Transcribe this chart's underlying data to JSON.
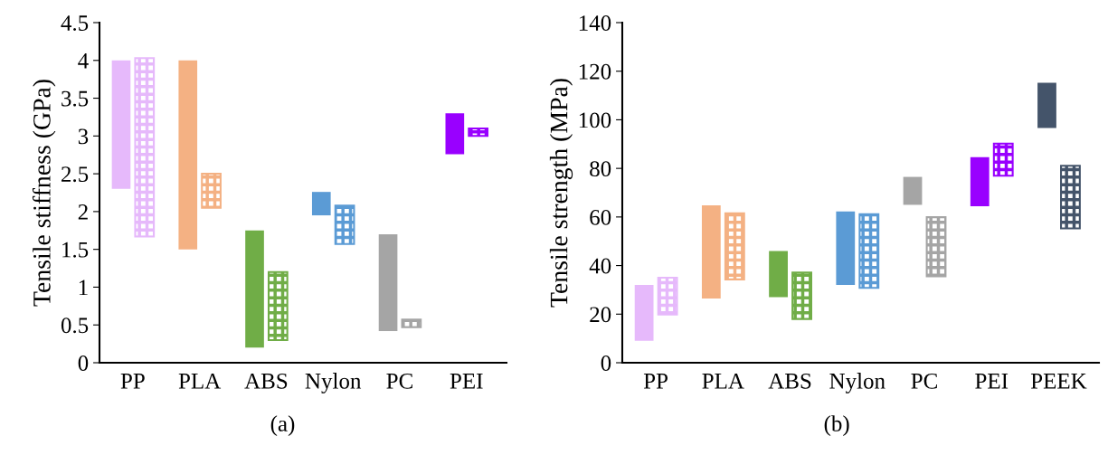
{
  "chart_data": [
    {
      "type": "bar",
      "ylabel": "Tensile stiffness (GPa)",
      "categories": [
        "PP",
        "PLA",
        "ABS",
        "Nylon",
        "PC",
        "PEI"
      ],
      "ylim": [
        0,
        4.5
      ],
      "yticks": [
        0,
        0.5,
        1,
        1.5,
        2,
        2.5,
        3,
        3.5,
        4,
        4.5
      ],
      "grid": false,
      "legend": false,
      "annotations": [
        "(a)"
      ],
      "series": [
        {
          "colors": [
            "#e6b9fb",
            "#f4b183",
            "#70ad47",
            "#5b9bd5",
            "#a5a5a5",
            "#9900ff"
          ],
          "base": [
            2.3,
            1.5,
            0.2,
            1.95,
            0.42,
            2.76
          ],
          "values": [
            1.7,
            2.5,
            1.55,
            0.31,
            1.28,
            0.54
          ]
        },
        {
          "colors": [
            "#e6b9fb",
            "#f4b183",
            "#70ad47",
            "#5b9bd5",
            "#a5a5a5",
            "#9900ff"
          ],
          "base": [
            1.67,
            2.05,
            0.3,
            1.57,
            0.47,
            3.0
          ],
          "values": [
            2.36,
            0.45,
            0.9,
            0.51,
            0.1,
            0.1
          ]
        }
      ]
    },
    {
      "type": "bar",
      "ylabel": "Tensile strength (MPa)",
      "categories": [
        "PP",
        "PLA",
        "ABS",
        "Nylon",
        "PC",
        "PEI",
        "PEEK"
      ],
      "ylim": [
        0,
        140
      ],
      "yticks": [
        0,
        20,
        40,
        60,
        80,
        100,
        120,
        140
      ],
      "grid": false,
      "legend": false,
      "annotations": [
        "(b)"
      ],
      "series": [
        {
          "colors": [
            "#e6b9fb",
            "#f4b183",
            "#70ad47",
            "#5b9bd5",
            "#a5a5a5",
            "#9900ff",
            "#44546a"
          ],
          "base": [
            9,
            26.4,
            27,
            32,
            65,
            64.4,
            96.6
          ],
          "values": [
            23,
            38.4,
            19,
            30.3,
            11.5,
            20.2,
            18.6
          ]
        },
        {
          "colors": [
            "#e6b9fb",
            "#f4b183",
            "#70ad47",
            "#5b9bd5",
            "#a5a5a5",
            "#9900ff",
            "#44546a"
          ],
          "base": [
            19.8,
            34.3,
            18,
            30.8,
            35.6,
            77,
            55.3
          ],
          "values": [
            15.2,
            27.2,
            19.1,
            30.3,
            24.3,
            13.2,
            25.8
          ]
        }
      ]
    }
  ]
}
